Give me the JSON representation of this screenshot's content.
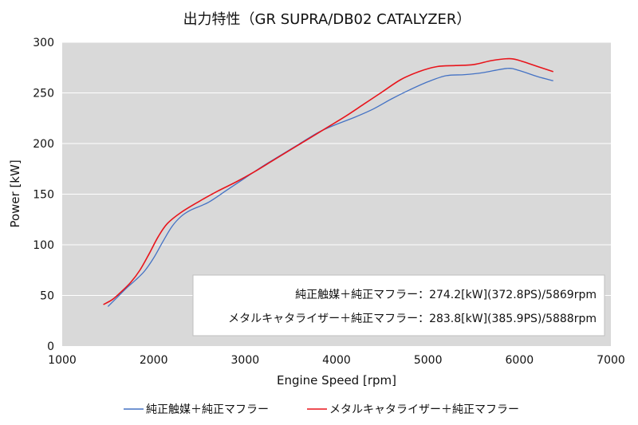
{
  "chart_data": {
    "type": "line",
    "title": "出力特性（GR SUPRA/DB02 CATALYZER）",
    "xlabel": "Engine Speed [rpm]",
    "ylabel": "Power [kW]",
    "xlim": [
      1000,
      7000
    ],
    "ylim": [
      0,
      300
    ],
    "xticks": [
      "1000",
      "2000",
      "3000",
      "4000",
      "5000",
      "6000",
      "7000"
    ],
    "yticks": [
      "0",
      "50",
      "100",
      "150",
      "200",
      "250",
      "300"
    ],
    "grid": "horizontal",
    "legend_position": "bottom",
    "annotations": [
      "純正触媒＋純正マフラー：274.2[kW](372.8PS)/5869rpm",
      "メタルキャタライザー＋純正マフラー：283.8[kW](385.9PS)/5888rpm"
    ],
    "series": [
      {
        "name": "純正触媒＋純正マフラー",
        "color": "#4472C4",
        "x": [
          1500,
          1600,
          1700,
          1800,
          1900,
          2000,
          2100,
          2200,
          2300,
          2400,
          2600,
          2800,
          3000,
          3200,
          3400,
          3600,
          3800,
          4000,
          4200,
          4400,
          4600,
          4800,
          5000,
          5200,
          5400,
          5600,
          5869,
          6000,
          6200,
          6370
        ],
        "y": [
          39,
          48,
          57,
          65,
          74,
          87,
          103,
          118,
          128,
          134,
          142,
          154,
          166,
          178,
          189,
          200,
          211,
          219,
          226,
          234,
          244,
          253,
          261,
          267,
          268,
          270,
          274.2,
          272,
          266,
          262
        ]
      },
      {
        "name": "メタルキャタライザー＋純正マフラー",
        "color": "#E8141B",
        "x": [
          1450,
          1550,
          1650,
          1750,
          1850,
          1950,
          2050,
          2150,
          2300,
          2500,
          2700,
          2900,
          3100,
          3300,
          3500,
          3700,
          3900,
          4100,
          4300,
          4500,
          4700,
          4900,
          5100,
          5300,
          5500,
          5700,
          5888,
          6000,
          6200,
          6370
        ],
        "y": [
          41,
          46,
          54,
          63,
          75,
          91,
          108,
          121,
          132,
          143,
          153,
          162,
          172,
          183,
          194,
          205,
          216,
          227,
          239,
          251,
          263,
          271,
          276,
          277,
          278,
          282,
          283.8,
          282,
          276,
          271
        ]
      }
    ]
  }
}
